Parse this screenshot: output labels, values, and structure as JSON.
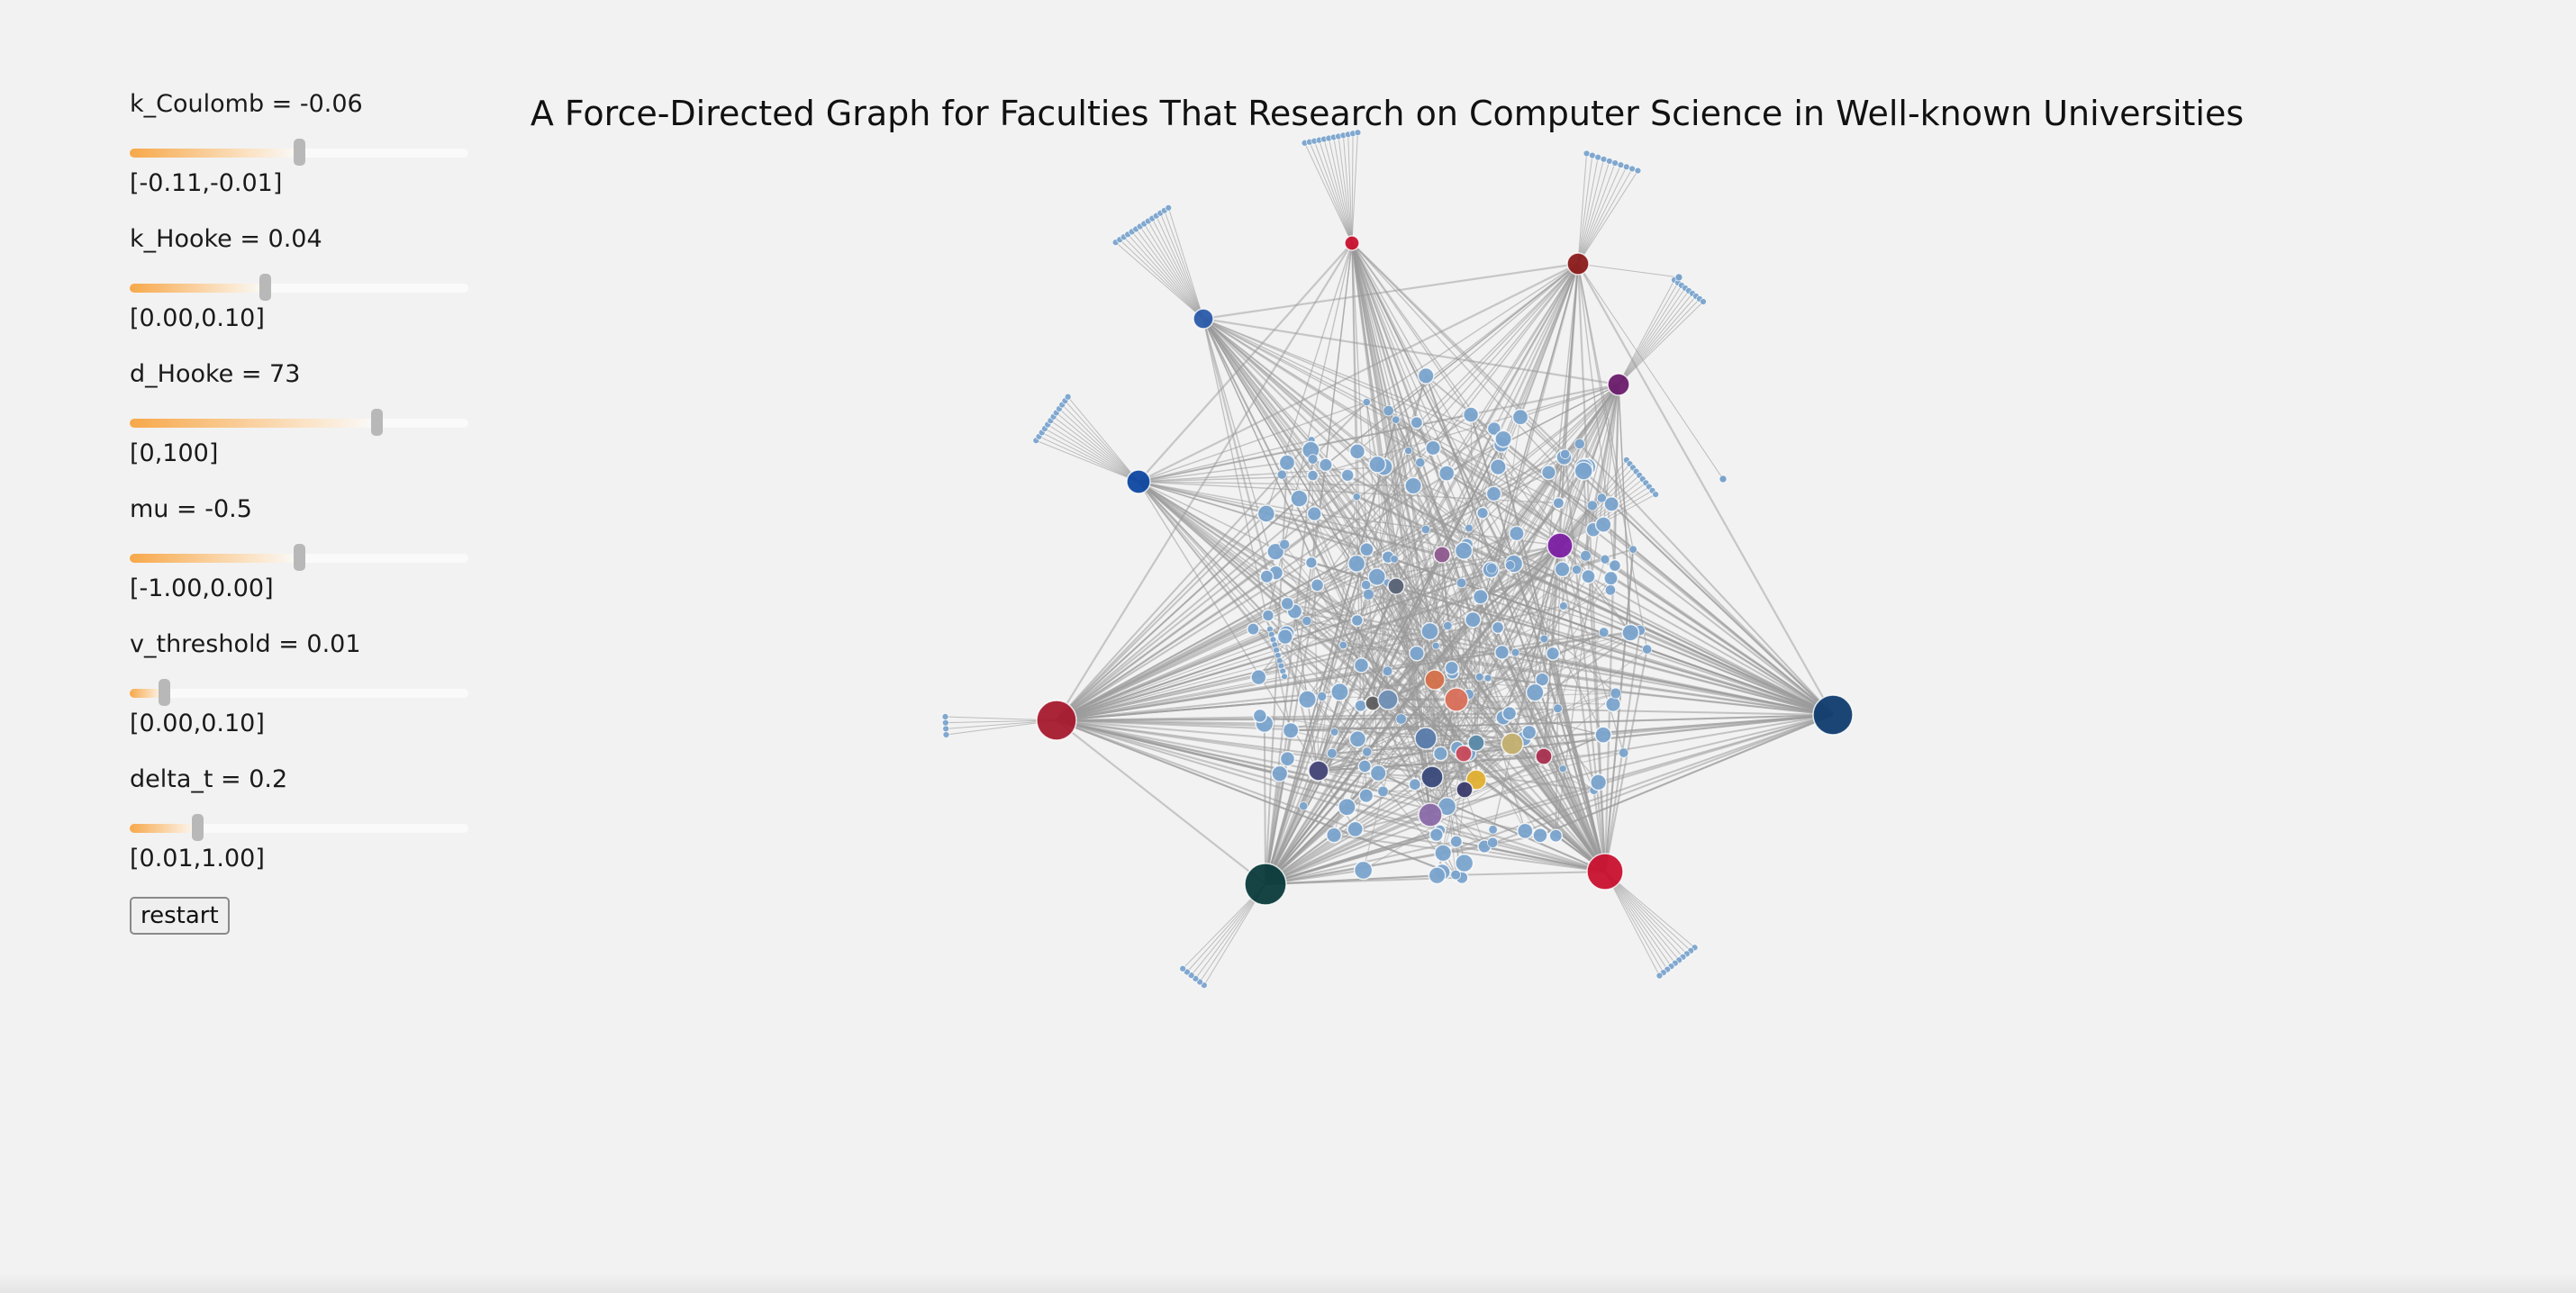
{
  "title": "A Force-Directed Graph for Faculties That Research on Computer Science in Well-known Universities",
  "params": [
    {
      "id": "k_coulomb",
      "label": "k_Coulomb = -0.06",
      "range": "[-0.11,-0.01]",
      "fraction": 0.5
    },
    {
      "id": "k_hooke",
      "label": "k_Hooke = 0.04",
      "range": "[0.00,0.10]",
      "fraction": 0.4
    },
    {
      "id": "d_hooke",
      "label": "d_Hooke = 73",
      "range": "[0,100]",
      "fraction": 0.73
    },
    {
      "id": "mu",
      "label": "mu = -0.5",
      "range": "[-1.00,0.00]",
      "fraction": 0.5
    },
    {
      "id": "v_threshold",
      "label": "v_threshold = 0.01",
      "range": "[0.00,0.10]",
      "fraction": 0.1
    },
    {
      "id": "delta_t",
      "label": "delta_t = 0.2",
      "range": "[0.01,1.00]",
      "fraction": 0.2
    }
  ],
  "restart_label": "restart",
  "colors": {
    "background": "#f2f2f2",
    "edge": "#9a9a9a",
    "faculty_node": "#7aa3cc",
    "slider_accent": "#f7a84a",
    "slider_thumb": "#b8b8b8"
  },
  "graph": {
    "hubs": [
      {
        "c": "#c8102e"
      },
      {
        "c": "#8b1a1a"
      },
      {
        "c": "#2a5aa8"
      },
      {
        "c": "#6a1b6a"
      },
      {
        "c": "#0d47a1"
      },
      {
        "c": "#7b1fa2"
      },
      {
        "c": "#a6192e"
      },
      {
        "c": "#0f3b6e"
      },
      {
        "c": "#0a3a3a"
      },
      {
        "c": "#c8102e"
      },
      {
        "c": "#8e5a8e"
      },
      {
        "c": "#5a6276"
      },
      {
        "c": "#d4714a"
      },
      {
        "c": "#d9705a"
      },
      {
        "c": "#5e5e5e"
      },
      {
        "c": "#6f8fb5"
      },
      {
        "c": "#5a7bab"
      },
      {
        "c": "#c84a5a"
      },
      {
        "c": "#4a5a8a"
      },
      {
        "c": "#c4b070"
      },
      {
        "c": "#4a4a7a"
      },
      {
        "c": "#3a4a7a"
      },
      {
        "c": "#e0b030"
      },
      {
        "c": "#8a6aa8"
      },
      {
        "c": "#a83050"
      },
      {
        "c": "#5a8aa8"
      },
      {
        "c": "#3a3a6a"
      }
    ]
  }
}
